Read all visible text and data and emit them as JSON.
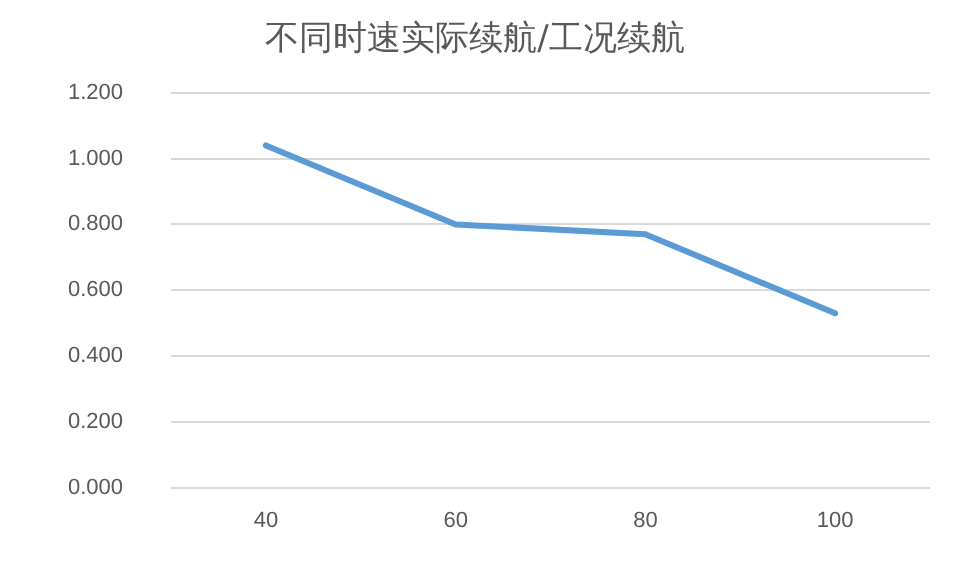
{
  "chart_data": {
    "type": "line",
    "title": "不同时速实际续航/工况续航",
    "categories": [
      "40",
      "60",
      "80",
      "100"
    ],
    "series": [
      {
        "color": "#5b9bd5",
        "values": [
          1.04,
          0.8,
          0.77,
          0.53
        ]
      }
    ],
    "ylim": [
      0,
      1.2
    ],
    "yticks": [
      {
        "value": 0,
        "label": "0.000"
      },
      {
        "value": 0.2,
        "label": "0.200"
      },
      {
        "value": 0.4,
        "label": "0.400"
      },
      {
        "value": 0.6,
        "label": "0.600"
      },
      {
        "value": 0.8,
        "label": "0.800"
      },
      {
        "value": 1,
        "label": "1.000"
      },
      {
        "value": 1.2,
        "label": "1.200"
      }
    ],
    "grid": "y",
    "legend": false,
    "marker": "none",
    "line_style": "solid"
  }
}
